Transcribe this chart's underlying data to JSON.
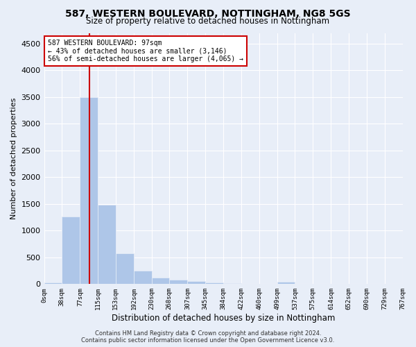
{
  "title": "587, WESTERN BOULEVARD, NOTTINGHAM, NG8 5GS",
  "subtitle": "Size of property relative to detached houses in Nottingham",
  "xlabel": "Distribution of detached houses by size in Nottingham",
  "ylabel": "Number of detached properties",
  "bar_color": "#aec6e8",
  "background_color": "#e8eef8",
  "annotation_box_color": "#cc0000",
  "property_line_color": "#cc0000",
  "property_value": 97,
  "annotation_line1": "587 WESTERN BOULEVARD: 97sqm",
  "annotation_line2": "← 43% of detached houses are smaller (3,146)",
  "annotation_line3": "56% of semi-detached houses are larger (4,065) →",
  "footer_line1": "Contains HM Land Registry data © Crown copyright and database right 2024.",
  "footer_line2": "Contains public sector information licensed under the Open Government Licence v3.0.",
  "bin_edges": [
    0,
    38,
    77,
    115,
    153,
    192,
    230,
    268,
    307,
    345,
    384,
    422,
    460,
    499,
    537,
    575,
    614,
    652,
    690,
    729,
    767
  ],
  "bin_labels": [
    "0sqm",
    "38sqm",
    "77sqm",
    "115sqm",
    "153sqm",
    "192sqm",
    "230sqm",
    "268sqm",
    "307sqm",
    "345sqm",
    "384sqm",
    "422sqm",
    "460sqm",
    "499sqm",
    "537sqm",
    "575sqm",
    "614sqm",
    "652sqm",
    "690sqm",
    "729sqm",
    "767sqm"
  ],
  "bar_heights": [
    30,
    1270,
    3500,
    1480,
    575,
    250,
    115,
    80,
    55,
    30,
    15,
    10,
    5,
    40,
    5,
    0,
    0,
    0,
    0,
    0
  ],
  "ylim": [
    0,
    4700
  ],
  "yticks": [
    0,
    500,
    1000,
    1500,
    2000,
    2500,
    3000,
    3500,
    4000,
    4500
  ]
}
